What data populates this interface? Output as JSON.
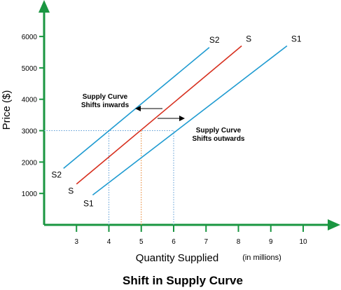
{
  "chart_data": {
    "type": "line",
    "title": "Shift in Supply Curve",
    "xlabel": "Quantity Supplied",
    "xlabel_unit": "(in millions)",
    "ylabel": "Price ($)",
    "x_ticks": [
      3,
      4,
      5,
      6,
      7,
      8,
      9,
      10
    ],
    "y_ticks": [
      1000,
      2000,
      3000,
      4000,
      5000,
      6000
    ],
    "xlim": [
      2.0,
      10.8
    ],
    "ylim": [
      0,
      6850
    ],
    "grid": false,
    "colors": {
      "axis": "#1a9641",
      "S": "#d7301f",
      "S1": "#1f9bd1",
      "S2": "#1f9bd1",
      "ref_3000": "#5b9bd5",
      "ref_5": "#e67e22",
      "ref_4_6": "#5b9bd5"
    },
    "series": [
      {
        "name": "S",
        "points": [
          [
            3.0,
            1300
          ],
          [
            8.1,
            5700
          ]
        ],
        "label_start": "S",
        "label_end": "S"
      },
      {
        "name": "S1",
        "points": [
          [
            3.5,
            950
          ],
          [
            9.5,
            5700
          ]
        ],
        "label_start": "S1",
        "label_end": "S1"
      },
      {
        "name": "S2",
        "points": [
          [
            2.6,
            1800
          ],
          [
            7.1,
            5650
          ]
        ],
        "label_start": "S2",
        "label_end": "S2"
      }
    ],
    "reference_lines": {
      "price": 3000,
      "quantities": [
        4,
        5,
        6
      ]
    },
    "annotations": [
      {
        "text_lines": [
          "Supply Curve",
          "Shifts inwards"
        ]
      },
      {
        "text_lines": [
          "Supply Curve",
          "Shifts outwards"
        ]
      }
    ]
  }
}
